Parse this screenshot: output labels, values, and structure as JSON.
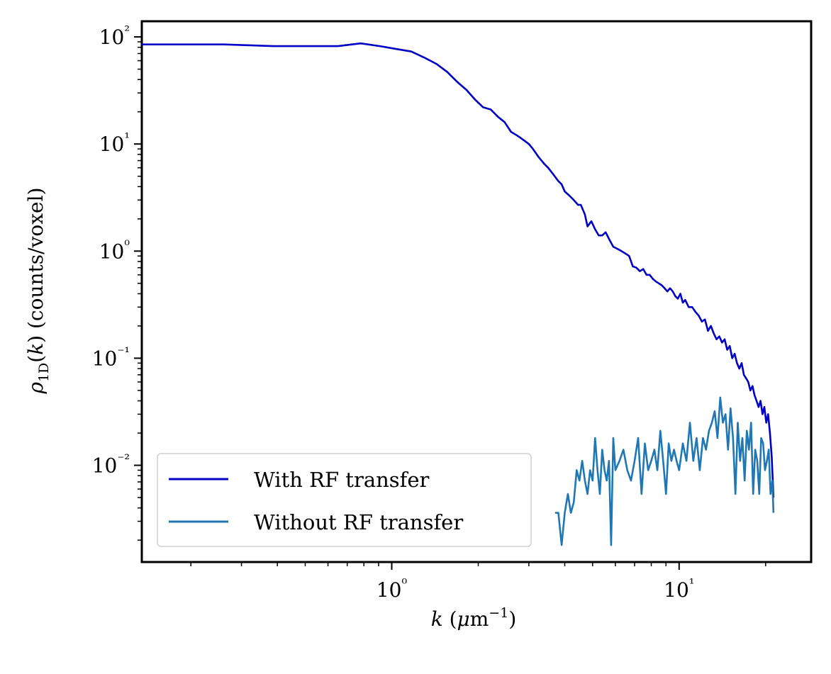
{
  "chart_data": {
    "type": "line",
    "xscale": "log",
    "yscale": "log",
    "xlim": [
      0.135,
      28.8
    ],
    "ylim": [
      0.00125,
      140
    ],
    "xlabel": "k (μm⁻¹)",
    "ylabel": "ρ1D(k) (counts/voxel)",
    "xtick_values": [
      1,
      10
    ],
    "xtick_labels": [
      "10⁰",
      "10¹"
    ],
    "ytick_values": [
      0.01,
      0.1,
      1,
      10,
      100
    ],
    "ytick_labels": [
      "10⁻²",
      "10⁻¹",
      "10⁰",
      "10¹",
      "10²"
    ],
    "grid": false,
    "legend_position": "lower-left",
    "series": [
      {
        "name": "With RF transfer",
        "color": "#0000c4",
        "x": [
          0.135,
          0.26,
          0.39,
          0.52,
          0.65,
          0.78,
          0.91,
          1.04,
          1.17,
          1.3,
          1.43,
          1.56,
          1.69,
          1.82,
          1.95,
          2.08,
          2.21,
          2.34,
          2.47,
          2.6,
          2.73,
          2.86,
          3.0,
          3.1,
          3.25,
          3.4,
          3.5,
          3.65,
          3.8,
          3.9,
          4.0,
          4.15,
          4.3,
          4.45,
          4.55,
          4.7,
          4.8,
          4.95,
          5.1,
          5.25,
          5.4,
          5.55,
          5.7,
          5.9,
          6.1,
          6.3,
          6.5,
          6.7,
          6.9,
          7.1,
          7.3,
          7.5,
          7.7,
          7.9,
          8.1,
          8.3,
          8.5,
          8.7,
          8.9,
          9.1,
          9.3,
          9.5,
          9.7,
          9.9,
          10.1,
          10.3,
          10.5,
          10.8,
          11.1,
          11.4,
          11.7,
          12.0,
          12.3,
          12.6,
          12.9,
          13.2,
          13.5,
          13.8,
          14.1,
          14.4,
          14.7,
          15.0,
          15.3,
          15.6,
          15.9,
          16.2,
          16.5,
          16.8,
          17.1,
          17.4,
          17.7,
          18.0,
          18.3,
          18.6,
          18.9,
          19.2,
          19.5,
          19.8,
          20.1,
          20.4,
          20.7,
          21.0,
          21.3
        ],
        "y": [
          85,
          85,
          82,
          82,
          82,
          87,
          82,
          77,
          73,
          64,
          56,
          47,
          38,
          32,
          26,
          22,
          21,
          18,
          16,
          13,
          12,
          11,
          10,
          9,
          7.5,
          6.5,
          6.0,
          5.2,
          4.5,
          4.2,
          3.6,
          3.3,
          3.0,
          2.7,
          2.7,
          2.2,
          1.7,
          1.9,
          1.6,
          1.4,
          1.4,
          1.5,
          1.3,
          1.1,
          1.05,
          1.0,
          0.95,
          0.9,
          0.72,
          0.7,
          0.65,
          0.68,
          0.6,
          0.6,
          0.55,
          0.52,
          0.5,
          0.48,
          0.45,
          0.42,
          0.45,
          0.42,
          0.38,
          0.36,
          0.4,
          0.33,
          0.35,
          0.3,
          0.3,
          0.27,
          0.25,
          0.22,
          0.23,
          0.18,
          0.2,
          0.17,
          0.15,
          0.16,
          0.14,
          0.15,
          0.12,
          0.13,
          0.1,
          0.11,
          0.09,
          0.08,
          0.09,
          0.07,
          0.065,
          0.06,
          0.05,
          0.055,
          0.045,
          0.04,
          0.035,
          0.04,
          0.03,
          0.035,
          0.025,
          0.03,
          0.02,
          0.012,
          0.005
        ]
      },
      {
        "name": "Without RF transfer",
        "color": "#1f77b4",
        "x": [
          3.7,
          3.8,
          3.9,
          4.0,
          4.1,
          4.2,
          4.3,
          4.4,
          4.5,
          4.6,
          4.7,
          4.8,
          4.9,
          5.0,
          5.1,
          5.2,
          5.3,
          5.4,
          5.5,
          5.6,
          5.7,
          5.8,
          5.9,
          6.0,
          6.2,
          6.4,
          6.6,
          6.8,
          7.0,
          7.2,
          7.4,
          7.6,
          7.8,
          8.0,
          8.2,
          8.4,
          8.6,
          8.8,
          9.0,
          9.2,
          9.4,
          9.6,
          9.8,
          10.0,
          10.3,
          10.6,
          10.9,
          11.2,
          11.5,
          11.8,
          12.1,
          12.4,
          12.7,
          13.0,
          13.3,
          13.6,
          13.9,
          14.2,
          14.5,
          14.8,
          15.1,
          15.4,
          15.7,
          16.0,
          16.3,
          16.6,
          16.9,
          17.2,
          17.5,
          17.8,
          18.1,
          18.4,
          18.7,
          19.0,
          19.3,
          19.6,
          19.9,
          20.2,
          20.5,
          20.8,
          21.1,
          21.3
        ],
        "y": [
          0.0036,
          0.0036,
          0.0018,
          0.0036,
          0.0054,
          0.0036,
          0.0045,
          0.009,
          0.0072,
          0.011,
          0.0072,
          0.0054,
          0.009,
          0.0072,
          0.018,
          0.009,
          0.0054,
          0.014,
          0.009,
          0.0072,
          0.011,
          0.0018,
          0.018,
          0.009,
          0.011,
          0.014,
          0.009,
          0.0072,
          0.011,
          0.018,
          0.0054,
          0.016,
          0.009,
          0.011,
          0.014,
          0.009,
          0.021,
          0.011,
          0.0054,
          0.016,
          0.011,
          0.014,
          0.011,
          0.009,
          0.016,
          0.011,
          0.025,
          0.011,
          0.018,
          0.009,
          0.018,
          0.014,
          0.021,
          0.025,
          0.032,
          0.018,
          0.043,
          0.025,
          0.03,
          0.014,
          0.034,
          0.018,
          0.0054,
          0.025,
          0.011,
          0.018,
          0.0072,
          0.021,
          0.014,
          0.025,
          0.0054,
          0.014,
          0.011,
          0.0054,
          0.018,
          0.016,
          0.009,
          0.011,
          0.014,
          0.0054,
          0.0072,
          0.0036
        ]
      }
    ]
  }
}
